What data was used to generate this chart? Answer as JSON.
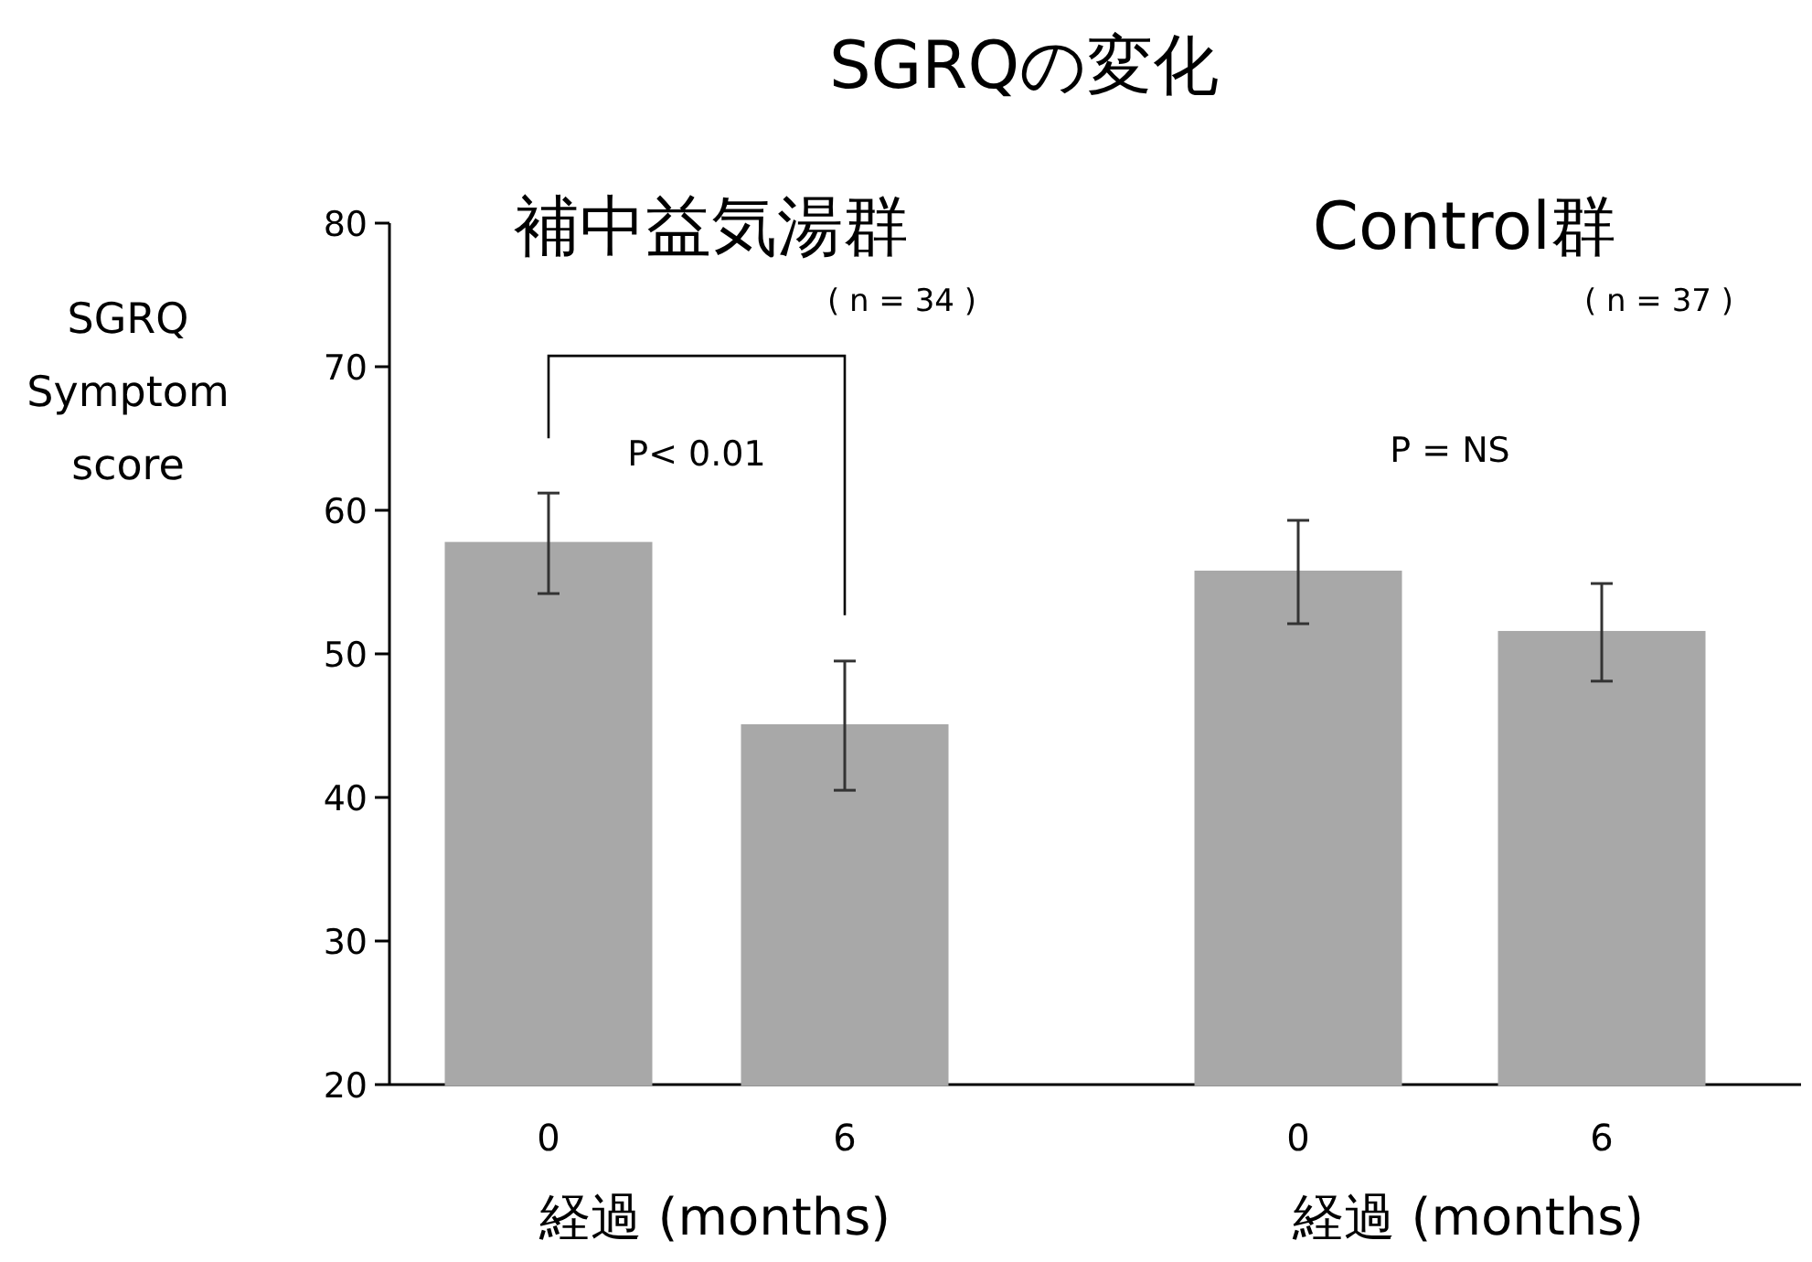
{
  "chart_data": {
    "type": "bar",
    "title": "SGRQの変化",
    "ylabel": "SGRQ Symptom score",
    "xlabel": "経過 (months)",
    "categories": [
      "0",
      "6",
      "0",
      "6"
    ],
    "values": [
      57.7,
      45.0,
      55.7,
      51.5
    ],
    "errors": [
      3.5,
      4.5,
      3.6,
      3.4
    ],
    "color": "#a8a8a8",
    "ylim": [
      20,
      80
    ],
    "yticks": [
      20,
      30,
      40,
      50,
      60,
      70,
      80
    ],
    "grid": false,
    "annotations": [
      "補中益気湯群",
      "Control群",
      "( n = 34 )",
      "( n = 37 )",
      "P< 0.01",
      "P = NS"
    ]
  }
}
